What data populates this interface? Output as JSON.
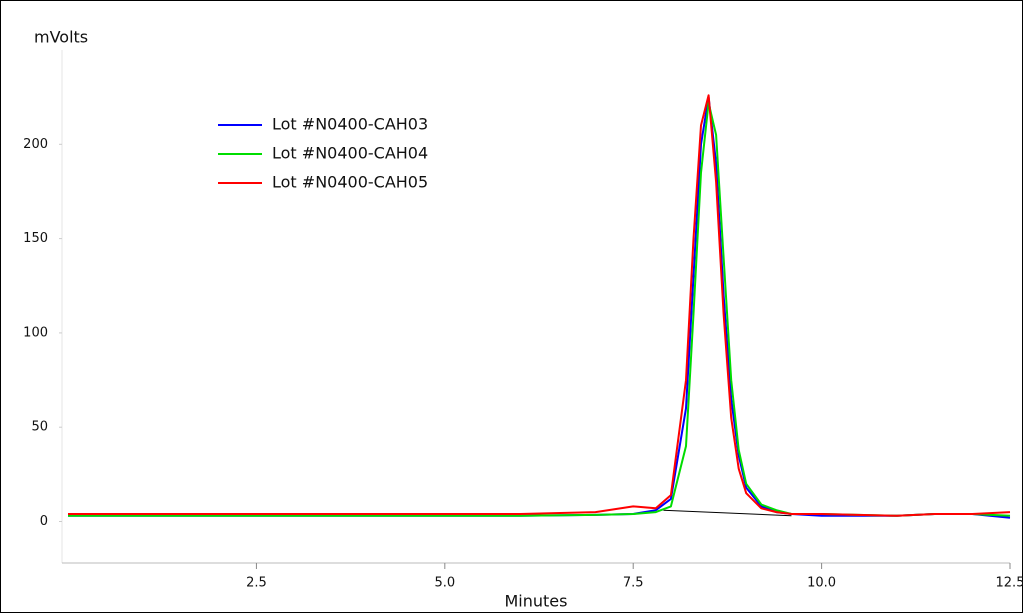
{
  "chart_data": {
    "type": "line",
    "y_label": "mVolts",
    "x_label": "Minutes",
    "x": [
      0,
      1,
      2,
      3,
      4,
      5,
      6,
      7,
      7.5,
      7.8,
      8.0,
      8.2,
      8.3,
      8.4,
      8.5,
      8.6,
      8.7,
      8.8,
      8.9,
      9.0,
      9.2,
      9.4,
      9.6,
      10,
      11,
      11.5,
      12,
      12.5
    ],
    "series": [
      {
        "name": "Lot #N0400-CAH03",
        "color": "#0000ff",
        "values": [
          3,
          3,
          3,
          3,
          3,
          3,
          3,
          3.5,
          4,
          6,
          12,
          60,
          130,
          200,
          225,
          190,
          120,
          65,
          35,
          18,
          8,
          5,
          4,
          3,
          3,
          4,
          4,
          2
        ]
      },
      {
        "name": "Lot #N0400-CAH04",
        "color": "#00dd00",
        "values": [
          3,
          3,
          3,
          3,
          3,
          3,
          3,
          3.5,
          4,
          5,
          8,
          40,
          110,
          185,
          222,
          205,
          140,
          75,
          38,
          20,
          9,
          6,
          4,
          4,
          3,
          4,
          4,
          3
        ]
      },
      {
        "name": "Lot #N0400-CAH05",
        "color": "#ff0000",
        "values": [
          4,
          4,
          4,
          4,
          4,
          4,
          4,
          5,
          8,
          7,
          14,
          75,
          150,
          210,
          226,
          180,
          110,
          55,
          28,
          15,
          7,
          5,
          4,
          4,
          3,
          4,
          4,
          5
        ]
      }
    ],
    "baseline": {
      "color": "#000000",
      "x": [
        7.9,
        9.6
      ],
      "values": [
        6,
        3
      ]
    },
    "xlim": [
      -0.08,
      12.5
    ],
    "ylim": [
      -22,
      250
    ],
    "xticks": [
      2.5,
      {
        "value": 5,
        "label": "5.0"
      },
      7.5,
      {
        "value": 10,
        "label": "10.0"
      },
      12.5
    ],
    "yticks": [
      0,
      50,
      100,
      150,
      200
    ],
    "grid": false
  }
}
